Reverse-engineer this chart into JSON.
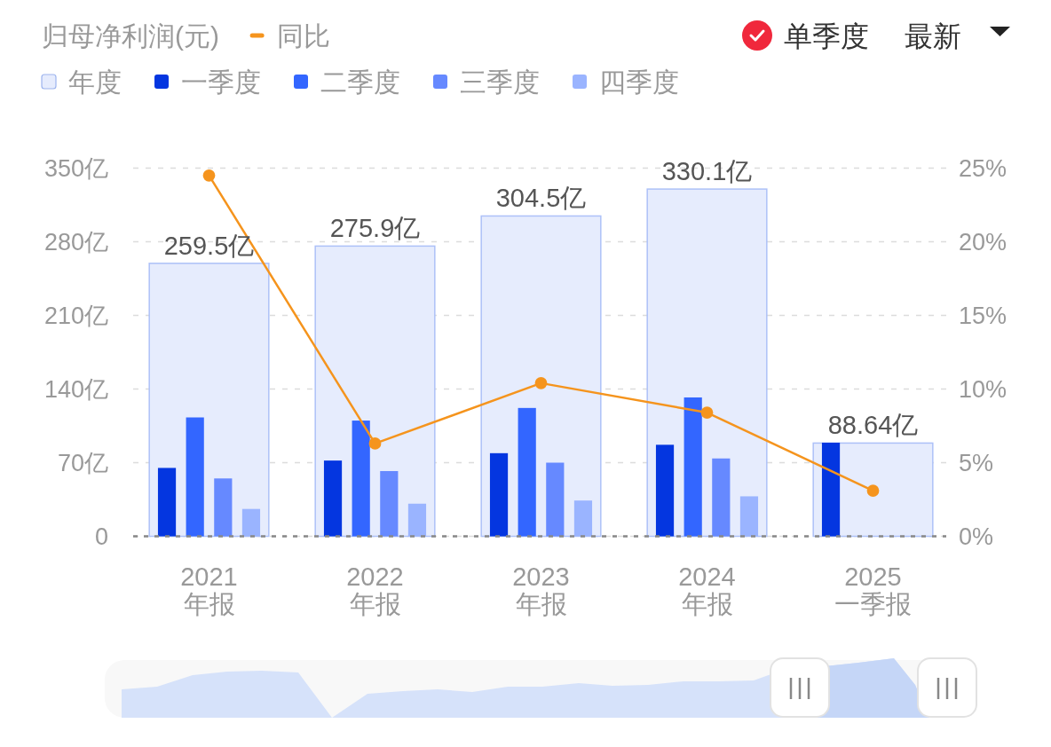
{
  "chart_data": {
    "type": "bar",
    "title": "归母净利润(元)",
    "categories": [
      "2021\n年报",
      "2022\n年报",
      "2023\n年报",
      "2024\n年报",
      "2025\n一季报"
    ],
    "series": [
      {
        "name": "年度",
        "type": "bar",
        "color": "#e6ecfd",
        "values": [
          259.5,
          275.9,
          304.5,
          330.1,
          88.64
        ],
        "value_labels": [
          "259.5亿",
          "275.9亿",
          "304.5亿",
          "330.1亿",
          "88.64亿"
        ]
      },
      {
        "name": "一季度",
        "color": "#0436e0",
        "values": [
          65,
          72,
          79,
          87,
          89
        ]
      },
      {
        "name": "二季度",
        "color": "#3366ff",
        "values": [
          113,
          110,
          122,
          132,
          null
        ]
      },
      {
        "name": "三季度",
        "color": "#6689ff",
        "values": [
          55,
          62,
          70,
          74,
          null
        ]
      },
      {
        "name": "四季度",
        "color": "#9ab4ff",
        "values": [
          26,
          31,
          34,
          38,
          null
        ]
      },
      {
        "name": "同比",
        "type": "line",
        "axis": "y2",
        "color": "#f5941d",
        "values": [
          24.5,
          6.3,
          10.4,
          8.4,
          3.1
        ]
      }
    ],
    "ylim": [
      0,
      350
    ],
    "yticks": [
      0,
      {
        "value": 70,
        "label": "70亿"
      },
      {
        "value": 140,
        "label": "140亿"
      },
      {
        "value": 210,
        "label": "210亿"
      },
      {
        "value": 280,
        "label": "280亿"
      },
      {
        "value": 350,
        "label": "350亿"
      }
    ],
    "y2lim": [
      0,
      25
    ],
    "y2ticks": [
      {
        "value": 0,
        "label": "0%"
      },
      {
        "value": 5,
        "label": "5%"
      },
      {
        "value": 10,
        "label": "10%"
      },
      {
        "value": 15,
        "label": "15%"
      },
      {
        "value": 20,
        "label": "20%"
      },
      {
        "value": 25,
        "label": "25%"
      }
    ],
    "grid": "y",
    "legend": "top left",
    "marker": "circle",
    "annotations": [
      "单季度",
      "最新"
    ]
  }
}
